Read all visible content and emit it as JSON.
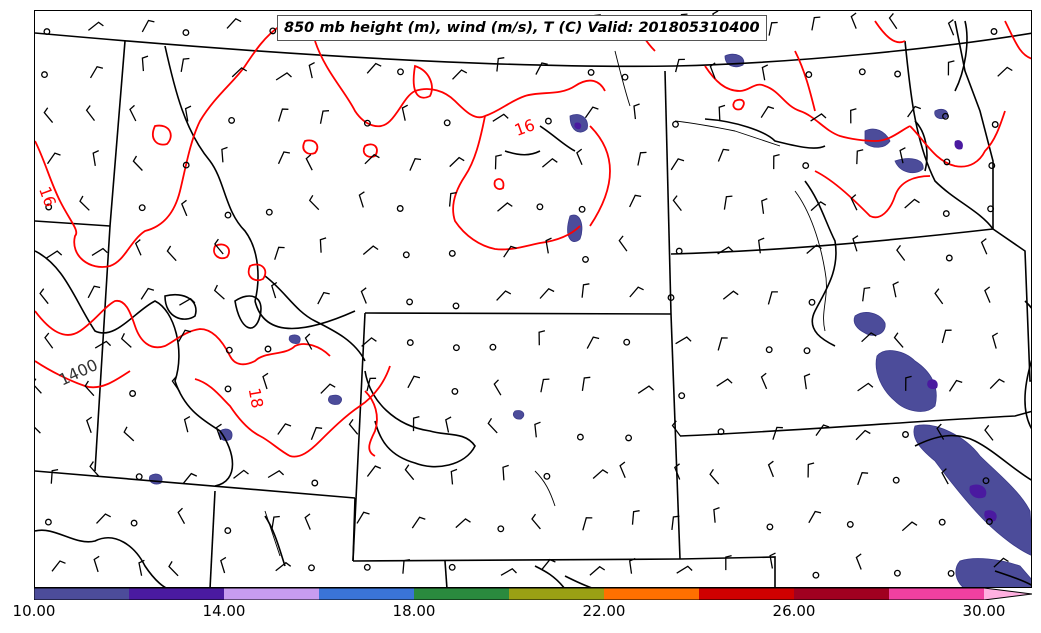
{
  "title": "850 mb height (m), wind (m/s), T (C) Valid: 201805310400",
  "contour_labels": {
    "temperature": [
      "16",
      "16",
      "18"
    ],
    "height": [
      "1400"
    ]
  },
  "colorbar": {
    "ticks": [
      "10.00",
      "14.00",
      "18.00",
      "22.00",
      "26.00",
      "30.00"
    ],
    "colors": [
      "#4c4c9a",
      "#4a1aa0",
      "#c79cf0",
      "#3a74d8",
      "#2a8a3e",
      "#9aa014",
      "#ff7000",
      "#d00000",
      "#a00020",
      "#f040a0",
      "#ffb0e0"
    ]
  },
  "colors": {
    "temperature_contour": "#ff0000",
    "height_contour": "#000000",
    "border": "#000000",
    "wind_barb": "#000000"
  }
}
